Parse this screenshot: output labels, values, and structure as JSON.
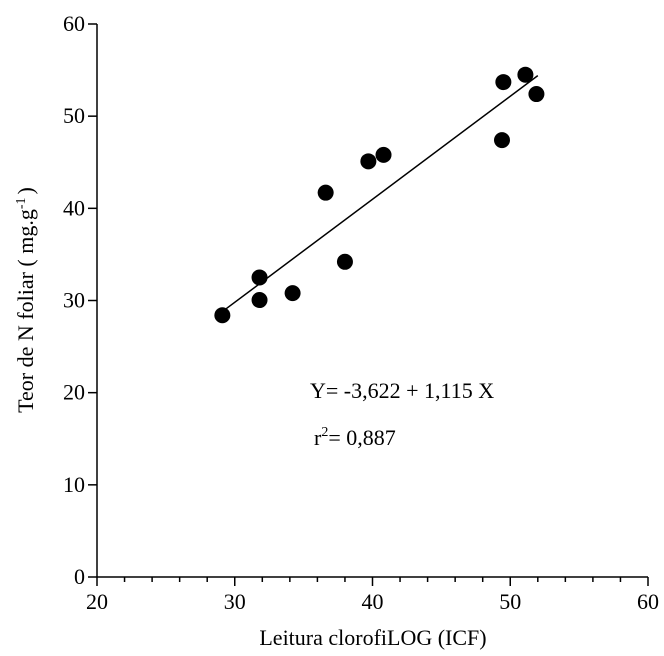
{
  "chart_data": {
    "type": "scatter",
    "x_label": "Leitura clorofiLOG (ICF)",
    "y_label": {
      "main": "Teor de N foliar ( mg.g",
      "sup": "-1",
      "end": ")"
    },
    "series": [
      {
        "color": "#000000",
        "x": [
          29.1,
          31.8,
          31.8,
          34.2,
          36.6,
          38.0,
          39.7,
          40.8,
          49.4,
          49.5,
          51.1,
          51.9
        ],
        "values": [
          28.4,
          32.5,
          30.05,
          30.8,
          41.7,
          34.2,
          45.1,
          45.8,
          47.4,
          53.7,
          54.5,
          52.4
        ]
      }
    ],
    "fit_line": {
      "x": [
        29.1,
        52.0
      ],
      "values": [
        28.8,
        54.4
      ]
    },
    "annotations": {
      "equation": "Y= -3,622 + 1,115 X",
      "r_base": "r",
      "r_sup": "2",
      "r_value": "= 0,887"
    },
    "xlim": [
      20,
      60
    ],
    "xticks": [
      20,
      30,
      40,
      50,
      60
    ],
    "xminorticks": [
      22,
      24,
      26,
      28,
      32,
      34,
      36,
      38,
      42,
      44,
      46,
      48,
      52,
      54,
      56,
      58
    ],
    "ylim": [
      0,
      60
    ],
    "yticks": [
      0,
      10,
      20,
      30,
      40,
      50,
      60
    ]
  }
}
